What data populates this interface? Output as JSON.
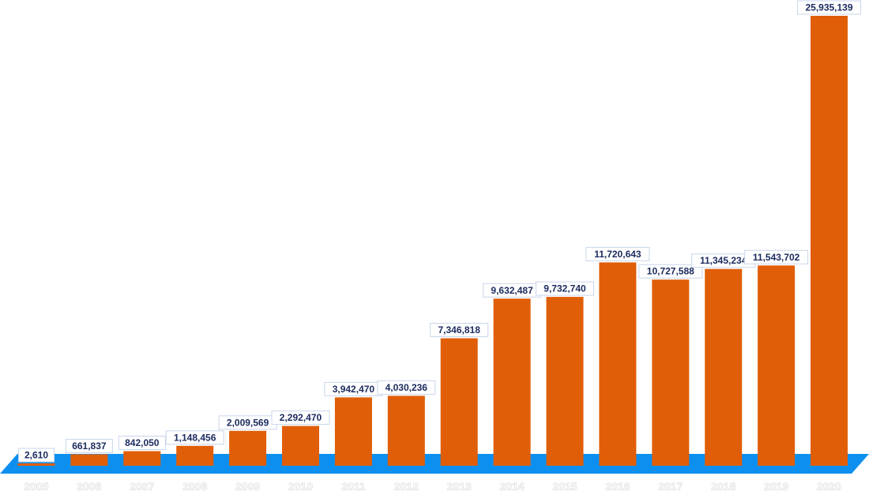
{
  "chart_data": {
    "type": "bar",
    "categories": [
      "2005",
      "2006",
      "2007",
      "2008",
      "2009",
      "2010",
      "2011",
      "2012",
      "2013",
      "2014",
      "2015",
      "2016",
      "2017",
      "2018",
      "2019",
      "2020"
    ],
    "values": [
      2610,
      661837,
      842050,
      1148456,
      2009569,
      2292470,
      3942470,
      4030236,
      7346818,
      9632487,
      9732740,
      11720643,
      10727588,
      11345234,
      11543702,
      25935139
    ],
    "value_labels": [
      "2,610",
      "661,837",
      "842,050",
      "1,148,456",
      "2,009,569",
      "2,292,470",
      "3,942,470",
      "4,030,236",
      "7,346,818",
      "9,632,487",
      "9,732,740",
      "11,720,643",
      "10,727,588",
      "11,345,234",
      "11,543,702",
      "25,935,139"
    ],
    "title": "",
    "xlabel": "",
    "ylabel": "",
    "ylim": [
      0,
      25935139
    ],
    "grid": false,
    "legend": "none",
    "colors": {
      "bar": "#e05e08",
      "floor": "#0d8ff0",
      "label_text": "#1a2a5e",
      "label_border": "#c9d6ec"
    }
  }
}
